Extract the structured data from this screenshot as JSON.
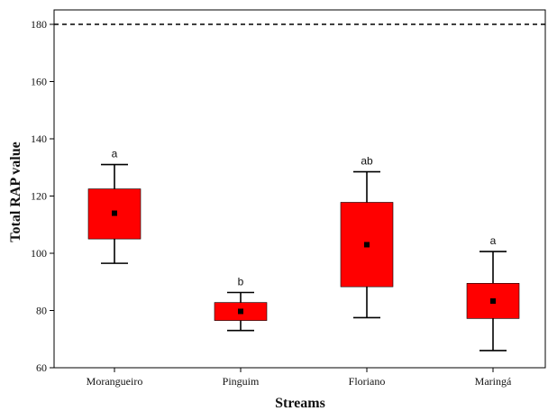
{
  "chart_data": {
    "type": "box",
    "xlabel": "Streams",
    "ylabel": "Total RAP value",
    "ylim": [
      60,
      185
    ],
    "yticks": [
      60,
      80,
      100,
      120,
      140,
      160,
      180
    ],
    "ytick_labels": [
      "60",
      "80",
      "100",
      "120",
      "140",
      "160",
      "180"
    ],
    "reference_line": {
      "y": 180,
      "style": "dashed"
    },
    "box_color": "#ff0000",
    "median_marker_color": "#000000",
    "grid": false,
    "categories": [
      "Morangueiro",
      "Pinguim",
      "Floriano",
      "Maringá"
    ],
    "boxes": [
      {
        "name": "Morangueiro",
        "whisker_low": 96.5,
        "box_low": 105,
        "center": 114,
        "box_high": 122.5,
        "whisker_high": 131,
        "group_label": "a"
      },
      {
        "name": "Pinguim",
        "whisker_low": 73,
        "box_low": 76.5,
        "center": 79.7,
        "box_high": 82.8,
        "whisker_high": 86.3,
        "group_label": "b"
      },
      {
        "name": "Floriano",
        "whisker_low": 77.5,
        "box_low": 88.3,
        "center": 103,
        "box_high": 117.8,
        "whisker_high": 128.5,
        "group_label": "ab"
      },
      {
        "name": "Maringá",
        "whisker_low": 66,
        "box_low": 77.2,
        "center": 83.3,
        "box_high": 89.5,
        "whisker_high": 100.6,
        "group_label": "a"
      }
    ]
  }
}
